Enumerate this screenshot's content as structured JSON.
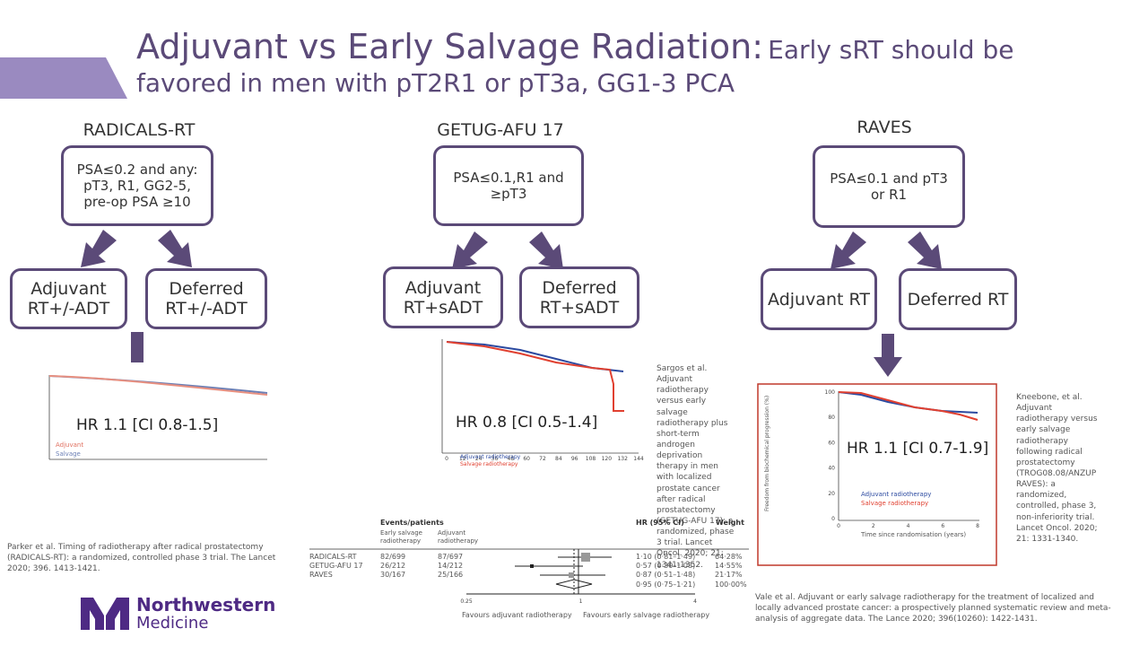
{
  "header": {
    "title": "Adjuvant vs Early Salvage Radiation:",
    "subtitle": "Early sRT should be favored in men with pT2R1 or pT3a, GG1-3 PCA"
  },
  "trials": [
    {
      "name": "RADICALS-RT",
      "criteria": "PSA≤0.2 and any: pT3, R1, GG2-5, pre-op PSA ≥10",
      "left": "Adjuvant RT+/-ADT",
      "right": "Deferred RT+/-ADT",
      "hr": "HR 1.1 [CI 0.8-1.5]",
      "citation": "Parker et al.  Timing of radiotherapy after radical prostatectomy (RADICALS-RT): a randomized, controlled phase 3 trial.  The Lancet 2020; 396.  1413-1421.",
      "legend": [
        "Adjuvant",
        "Salvage"
      ]
    },
    {
      "name": "GETUG-AFU 17",
      "criteria": "PSA≤0.1,R1 and ≥pT3",
      "left": "Adjuvant RT+sADT",
      "right": "Deferred RT+sADT",
      "hr": "HR 0.8 [CI 0.5-1.4]",
      "citation": "Sargos et al. Adjuvant radiotherapy versus early salvage radiotherapy plus short-term androgen deprivation therapy in men with localized prostate cancer after radical prostatectomy (GETUG-AFU 17): a randomized, phase 3 trial.  Lancet Oncol. 2020; 21: 1341-1352.",
      "legend": [
        "Adjuvant radiotherapy",
        "Salvage radiotherapy"
      ],
      "xticks": [
        0,
        12,
        24,
        36,
        48,
        60,
        72,
        84,
        96,
        108,
        120,
        132,
        144
      ]
    },
    {
      "name": "RAVES",
      "criteria": "PSA≤0.1 and pT3 or R1",
      "left": "Adjuvant RT",
      "right": "Deferred RT",
      "hr": "HR 1.1 [CI 0.7-1.9]",
      "citation": "Kneebone, et al. Adjuvant radiotherapy versus early salvage radiotherapy following radical prostatectomy (TROG08.08/ANZUP RAVES): a randomized, controlled, phase 3, non-inferiority trial. Lancet Oncol. 2020; 21: 1331-1340.",
      "legend": [
        "Adjuvant radiotherapy",
        "Salvage radiotherapy"
      ],
      "xlabel": "Time since randomisation (years)",
      "ylabel": "Freedom from biochemical progression (%)",
      "xticks": [
        0,
        2,
        4,
        6,
        8
      ],
      "yticks": [
        100,
        80,
        60,
        40,
        20,
        0
      ]
    }
  ],
  "forest": {
    "header": "Events/patients",
    "columns": [
      "Early salvage radiotherapy",
      "Adjuvant radiotherapy",
      "HR (95% CI)",
      "Weight"
    ],
    "rows": [
      [
        "RADICALS-RT",
        "82/699",
        "87/697",
        "1·10 (0·81–1·49)",
        "64·28%"
      ],
      [
        "GETUG-AFU 17",
        "26/212",
        "14/212",
        "0·57 (0·30–1·08)",
        "14·55%"
      ],
      [
        "RAVES",
        "30/167",
        "25/166",
        "0·87 (0·51–1·48)",
        "21·17%"
      ]
    ],
    "overall": {
      "hr": "0·95 (0·75–1·21)",
      "weight": "100·00%"
    },
    "xticks": [
      0.25,
      1,
      4
    ],
    "left_label": "Favours adjuvant radiotherapy",
    "right_label": "Favours early salvage radiotherapy",
    "citation": "Vale et al.  Adjuvant or early salvage radiotherapy for the treatment of localized and locally advanced prostate cancer: a prospectively planned systematic review and meta-analysis of aggregate data.  The Lance 2020; 396(10260): 1422-1431."
  },
  "logo": {
    "line1": "Northwestern",
    "line2": "Medicine"
  }
}
